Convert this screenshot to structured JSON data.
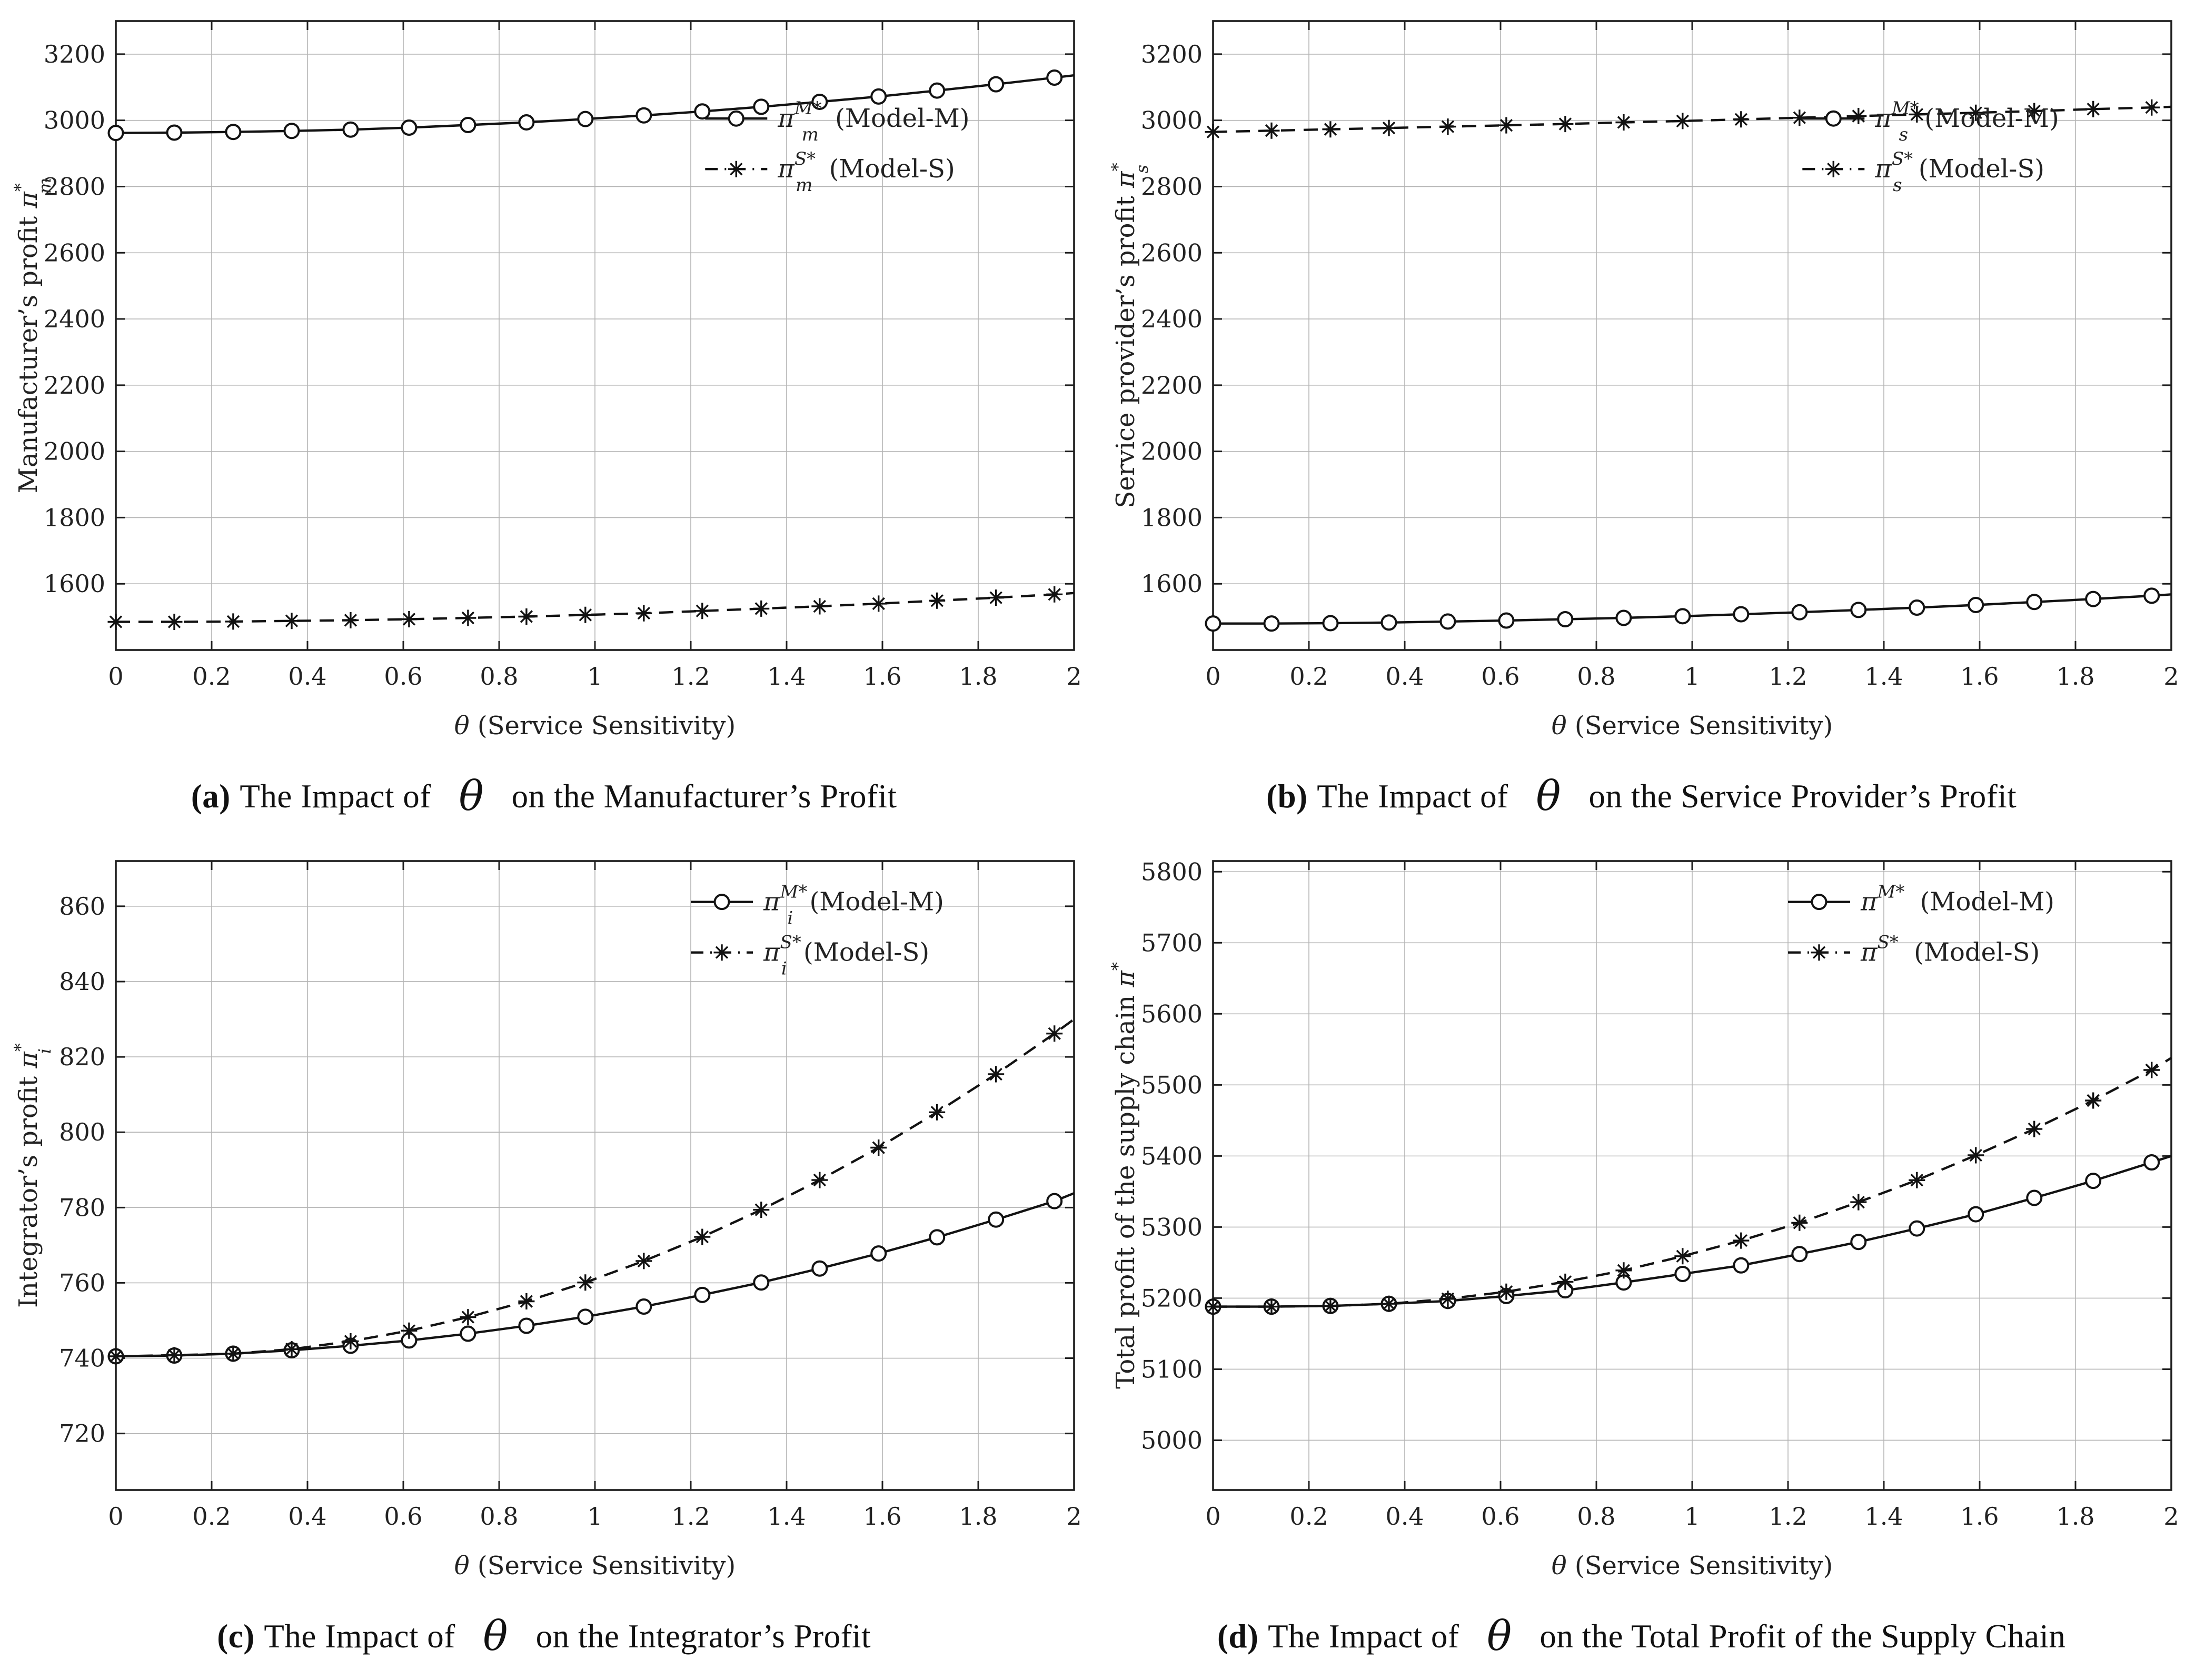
{
  "colors": {
    "background": "#ffffff",
    "axis": "#1f1f1f",
    "grid": "#b4b4b4",
    "series": "#121212",
    "text": "#222222"
  },
  "xlabel": {
    "theta": "θ",
    "rest": " (Service Sensitivity)"
  },
  "x_axis": {
    "values": [
      0,
      0.2,
      0.4,
      0.6,
      0.8,
      1,
      1.2,
      1.4,
      1.6,
      1.8,
      2
    ],
    "labels": [
      "0",
      "0.2",
      "0.4",
      "0.6",
      "0.8",
      "1",
      "1.2",
      "1.4",
      "1.6",
      "1.8",
      "2"
    ],
    "xlim": [
      0,
      2
    ]
  },
  "chart_data": [
    {
      "type": "line",
      "id": "a",
      "xlabel": "θ (Service Sensitivity)",
      "ylabel": {
        "text": "Manufacturer’s profit ",
        "pi": "π",
        "sup": "*",
        "sub": "m"
      },
      "ylim": [
        1400,
        3300
      ],
      "yticks": [
        1600,
        1800,
        2000,
        2200,
        2400,
        2600,
        2800,
        3000,
        3200
      ],
      "x": [
        0,
        0.122,
        0.245,
        0.367,
        0.49,
        0.612,
        0.735,
        0.857,
        0.98,
        1.102,
        1.224,
        1.347,
        1.469,
        1.592,
        1.714,
        1.837,
        1.959,
        2.0
      ],
      "series": [
        {
          "marker": "circle",
          "line": "solid",
          "legend_sup": "M*",
          "legend_sub": "m",
          "legend_model": "(Model-M)",
          "values": [
            2962,
            2963,
            2965,
            2968,
            2972,
            2978,
            2986,
            2994,
            3004,
            3015,
            3027,
            3041,
            3056,
            3072,
            3090,
            3109,
            3129,
            3136
          ]
        },
        {
          "marker": "asterisk",
          "line": "dashed",
          "legend_sup": "S*",
          "legend_sub": "m",
          "legend_model": "(Model-S)",
          "values": [
            1485,
            1485,
            1486,
            1488,
            1490,
            1493,
            1497,
            1501,
            1506,
            1511,
            1518,
            1525,
            1532,
            1540,
            1549,
            1558,
            1568,
            1572
          ]
        }
      ],
      "caption": {
        "letter": "a",
        "before": "The Impact of",
        "theta": "θ",
        "after": "on the Manufacturer’s Profit"
      }
    },
    {
      "type": "line",
      "id": "b",
      "xlabel": "θ (Service Sensitivity)",
      "ylabel": {
        "text": "Service provider’s profit ",
        "pi": "π",
        "sup": "*",
        "sub": "s"
      },
      "ylim": [
        1400,
        3300
      ],
      "yticks": [
        1600,
        1800,
        2000,
        2200,
        2400,
        2600,
        2800,
        3000,
        3200
      ],
      "x": [
        0,
        0.122,
        0.245,
        0.367,
        0.49,
        0.612,
        0.735,
        0.857,
        0.98,
        1.102,
        1.224,
        1.347,
        1.469,
        1.592,
        1.714,
        1.837,
        1.959,
        2.0
      ],
      "series": [
        {
          "marker": "circle",
          "line": "solid",
          "legend_sup": "M*",
          "legend_sub": "s",
          "legend_model": "(Model-M)",
          "values": [
            1480,
            1480,
            1481,
            1483,
            1486,
            1489,
            1493,
            1497,
            1502,
            1508,
            1514,
            1521,
            1528,
            1536,
            1545,
            1554,
            1564,
            1568
          ]
        },
        {
          "marker": "asterisk",
          "line": "dashed",
          "legend_sup": "S*",
          "legend_sub": "s",
          "legend_model": "(Model-S)",
          "values": [
            2965,
            2969,
            2973,
            2977,
            2981,
            2985,
            2989,
            2994,
            2998,
            3003,
            3008,
            3013,
            3018,
            3023,
            3028,
            3034,
            3039,
            3041
          ]
        }
      ],
      "caption": {
        "letter": "b",
        "before": "The Impact of",
        "theta": "θ",
        "after": "on the Service Provider’s Profit"
      }
    },
    {
      "type": "line",
      "id": "c",
      "xlabel": "θ (Service Sensitivity)",
      "ylabel": {
        "text": "Integrator’s profit ",
        "pi": "π",
        "sup": "*",
        "sub": "i"
      },
      "ylim": [
        705,
        872
      ],
      "yticks": [
        720,
        740,
        760,
        780,
        800,
        820,
        840,
        860
      ],
      "x": [
        0,
        0.122,
        0.245,
        0.367,
        0.49,
        0.612,
        0.735,
        0.857,
        0.98,
        1.102,
        1.224,
        1.347,
        1.469,
        1.592,
        1.714,
        1.837,
        1.959,
        2.0
      ],
      "series": [
        {
          "marker": "circle",
          "line": "solid",
          "legend_sup": "M*",
          "legend_sub": "i",
          "legend_model": "(Model-M)",
          "values": [
            740.5,
            740.7,
            741.2,
            742.1,
            743.3,
            744.7,
            746.5,
            748.6,
            751.0,
            753.7,
            756.8,
            760.1,
            763.8,
            767.8,
            772.1,
            776.8,
            781.7,
            783.8
          ]
        },
        {
          "marker": "asterisk",
          "line": "dashed",
          "legend_sup": "S*",
          "legend_sub": "i",
          "legend_model": "(Model-S)",
          "values": [
            740.5,
            740.8,
            741.2,
            742.4,
            744.5,
            747.3,
            750.9,
            755.1,
            760.1,
            765.8,
            772.2,
            779.4,
            787.3,
            795.9,
            805.3,
            815.4,
            826.2,
            830.0
          ]
        }
      ],
      "caption": {
        "letter": "c",
        "before": "The Impact of",
        "theta": "θ",
        "after": "on the Integrator’s Profit"
      }
    },
    {
      "type": "line",
      "id": "d",
      "xlabel": "θ (Service Sensitivity)",
      "ylabel": {
        "text": "Total profit of the supply chain ",
        "pi": "π",
        "sup": "*",
        "sub": ""
      },
      "ylim": [
        4930,
        5815
      ],
      "yticks": [
        5000,
        5100,
        5200,
        5300,
        5400,
        5500,
        5600,
        5700,
        5800
      ],
      "x": [
        0,
        0.122,
        0.245,
        0.367,
        0.49,
        0.612,
        0.735,
        0.857,
        0.98,
        1.102,
        1.224,
        1.347,
        1.469,
        1.592,
        1.714,
        1.837,
        1.959,
        2.0
      ],
      "series": [
        {
          "marker": "circle",
          "line": "solid",
          "legend_sup": "M*",
          "legend_sub": "",
          "legend_model": "(Model-M)",
          "values": [
            5188,
            5188,
            5189,
            5192,
            5196,
            5203,
            5211,
            5222,
            5234,
            5246,
            5262,
            5279,
            5298,
            5318,
            5341,
            5365,
            5391,
            5400
          ]
        },
        {
          "marker": "asterisk",
          "line": "dashed",
          "legend_sup": "S*",
          "legend_sub": "",
          "legend_model": "(Model-S)",
          "values": [
            5188,
            5188,
            5189,
            5192,
            5199,
            5209,
            5223,
            5239,
            5259,
            5281,
            5306,
            5335,
            5366,
            5401,
            5438,
            5478,
            5521,
            5538
          ]
        }
      ],
      "caption": {
        "letter": "d",
        "before": "The Impact of",
        "theta": "θ",
        "after": "on the Total Profit of the Supply Chain"
      }
    }
  ]
}
